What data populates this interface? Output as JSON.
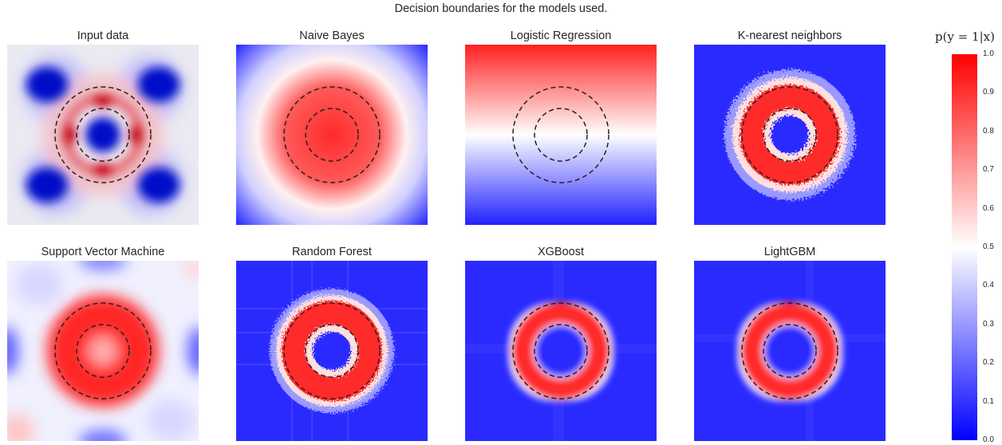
{
  "figure": {
    "title": "Decision boundaries for the models used."
  },
  "colorbar": {
    "label": "p(y = 1|x)",
    "ticks": [
      "0.0",
      "0.1",
      "0.2",
      "0.3",
      "0.4",
      "0.5",
      "0.6",
      "0.7",
      "0.8",
      "0.9",
      "1.0"
    ],
    "colors": {
      "low": "#0000ff",
      "mid": "#ffffff",
      "high": "#ff0000"
    }
  },
  "chart_data": {
    "type": "heatmap",
    "value_range": [
      0.0,
      1.0
    ],
    "boundary_style": "dashed-circles",
    "panels": [
      {
        "title": "Input data",
        "kind": "scatter"
      },
      {
        "title": "Naive Bayes",
        "kind": "gaussian"
      },
      {
        "title": "Logistic Regression",
        "kind": "gradient"
      },
      {
        "title": "K-nearest neighbors",
        "kind": "ring-noisy"
      },
      {
        "title": "Support Vector Machine",
        "kind": "svm"
      },
      {
        "title": "Random Forest",
        "kind": "ring-noisy-grid"
      },
      {
        "title": "XGBoost",
        "kind": "ring-smooth"
      },
      {
        "title": "LightGBM",
        "kind": "ring-smooth"
      }
    ]
  }
}
